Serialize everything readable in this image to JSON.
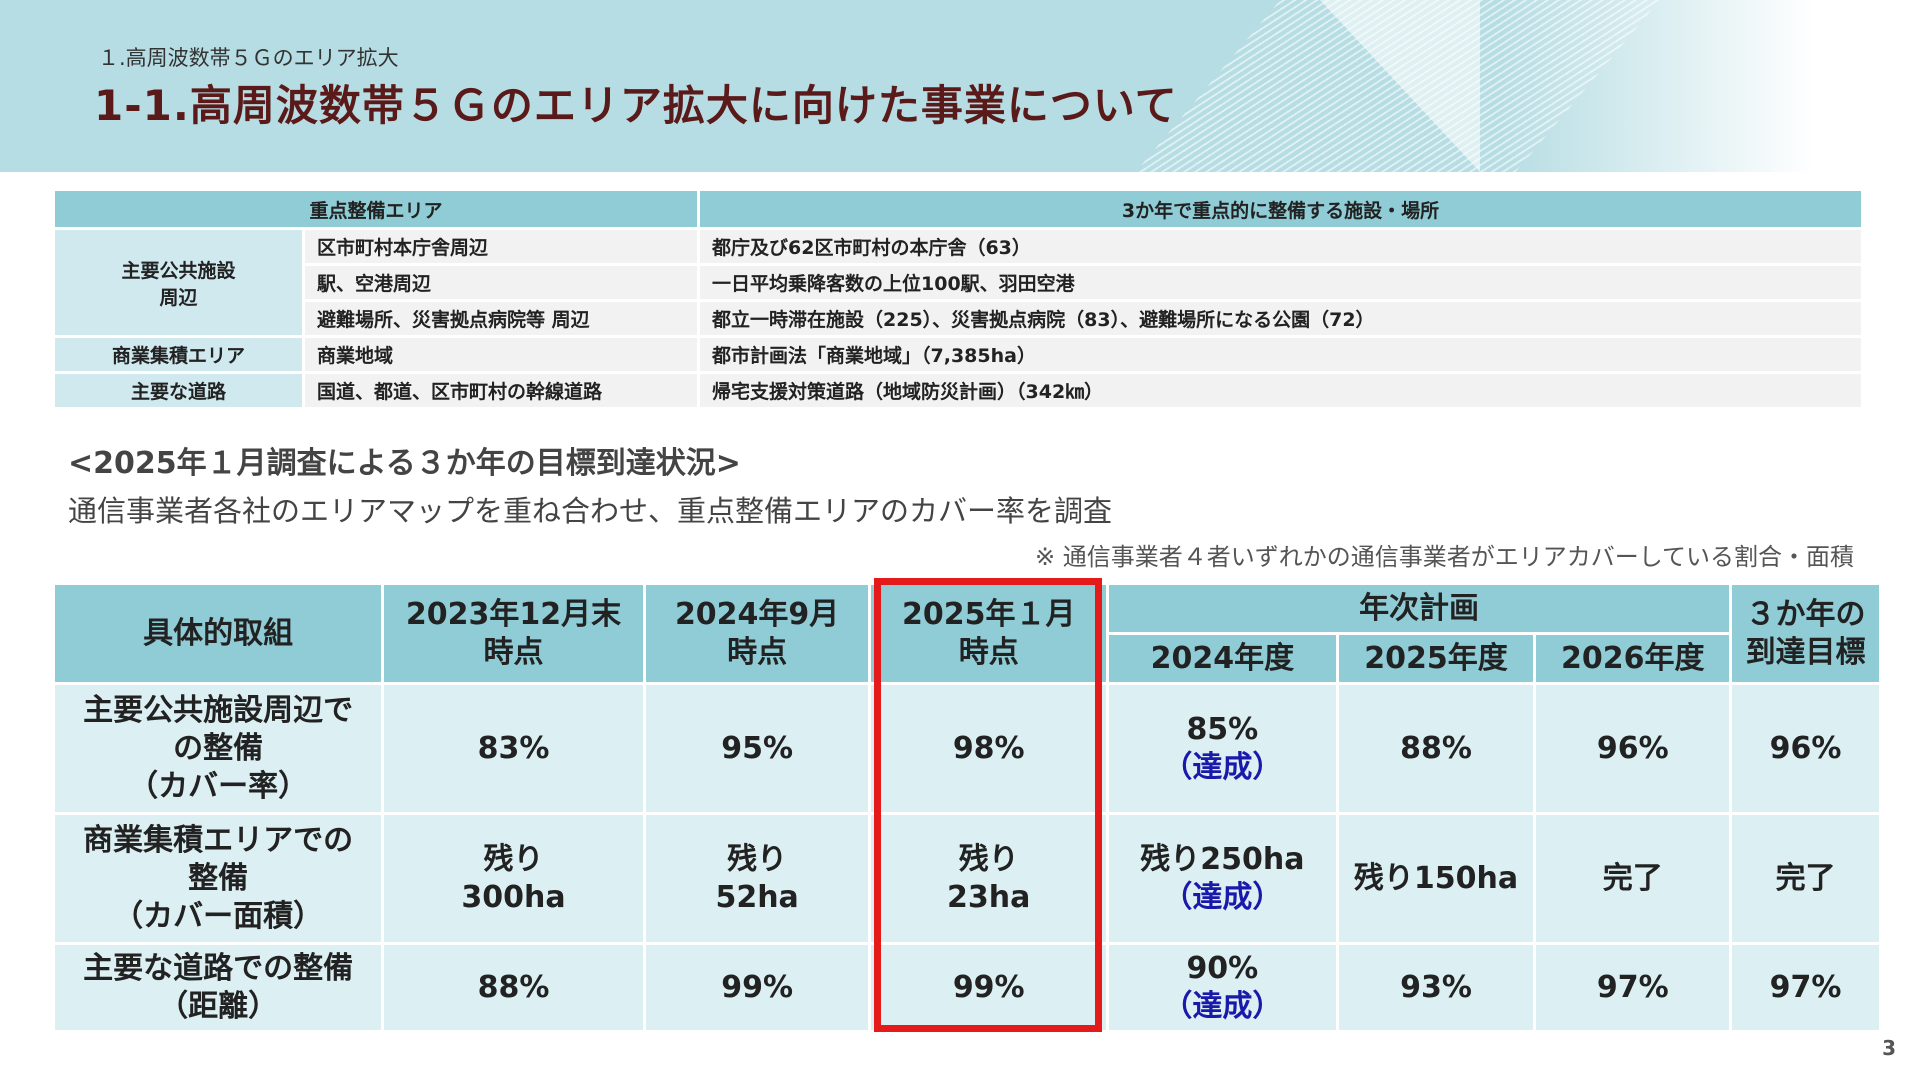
{
  "header": {
    "subtitle": "１.高周波数帯５Ｇのエリア拡大",
    "title": "1-1.高周波数帯５Ｇのエリア拡大に向けた事業について"
  },
  "area_table": {
    "headers": [
      "重点整備エリア",
      "3か年で重点的に整備する施設・場所"
    ],
    "groups": [
      {
        "label": "主要公共施設\n周辺",
        "rows": [
          {
            "area": "区市町村本庁舎周辺",
            "facility": "都庁及び62区市町村の本庁舎（63）"
          },
          {
            "area": "駅、空港周辺",
            "facility": "一日平均乗降客数の上位100駅、羽田空港"
          },
          {
            "area": "避難場所、災害拠点病院等 周辺",
            "facility": "都立一時滞在施設（225）、災害拠点病院（83）、避難場所になる公園（72）"
          }
        ]
      },
      {
        "label": "商業集積エリア",
        "rows": [
          {
            "area": "商業地域",
            "facility": "都市計画法「商業地域」（7,385ha）"
          }
        ]
      },
      {
        "label": "主要な道路",
        "rows": [
          {
            "area": "国道、都道、区市町村の幹線道路",
            "facility": "帰宅支援対策道路（地域防災計画）（342㎞）"
          }
        ]
      }
    ]
  },
  "survey": {
    "heading": "<2025年１月調査による３か年の目標到達状況>",
    "description": "通信事業者各社のエリアマップを重ね合わせ、重点整備エリアのカバー率を調査",
    "note": "※ 通信事業者４者いずれかの通信事業者がエリアカバーしている割合・面積"
  },
  "progress_table": {
    "col_initiative": "具体的取組",
    "col_2023": "2023年12月末\n時点",
    "col_2024": "2024年9月\n時点",
    "col_2025": "2025年１月\n時点",
    "col_plan": "年次計画",
    "col_fy2024": "2024年度",
    "col_fy2025": "2025年度",
    "col_fy2026": "2026年度",
    "col_target": "３か年の\n到達目標",
    "rows": [
      {
        "label": "主要公共施設周辺で\nの整備\n（カバー率）",
        "v2023": "83%",
        "v2024": "95%",
        "v2025": "98%",
        "fy2024": "85%",
        "fy2024_status": "（達成）",
        "fy2025": "88%",
        "fy2026": "96%",
        "target": "96%"
      },
      {
        "label": "商業集積エリアでの\n整備\n（カバー面積）",
        "v2023": "残り\n300ha",
        "v2024": "残り\n52ha",
        "v2025": "残り\n23ha",
        "fy2024": "残り250ha",
        "fy2024_status": "（達成）",
        "fy2025": "残り150ha",
        "fy2026": "完了",
        "target": "完了"
      },
      {
        "label": "主要な道路での整備\n（距離）",
        "v2023": "88%",
        "v2024": "99%",
        "v2025": "99%",
        "fy2024": "90%",
        "fy2024_status": "（達成）",
        "fy2025": "93%",
        "fy2026": "97%",
        "target": "97%"
      }
    ]
  },
  "page_number": "3",
  "colors": {
    "header_bg": "#b6dde3",
    "title": "#5b1a1a",
    "th_bg": "#8fccd6",
    "cell_bg": "#dcf0f4",
    "highlight": "#e51a1a",
    "achieved_blue": "#1a1aaa"
  }
}
